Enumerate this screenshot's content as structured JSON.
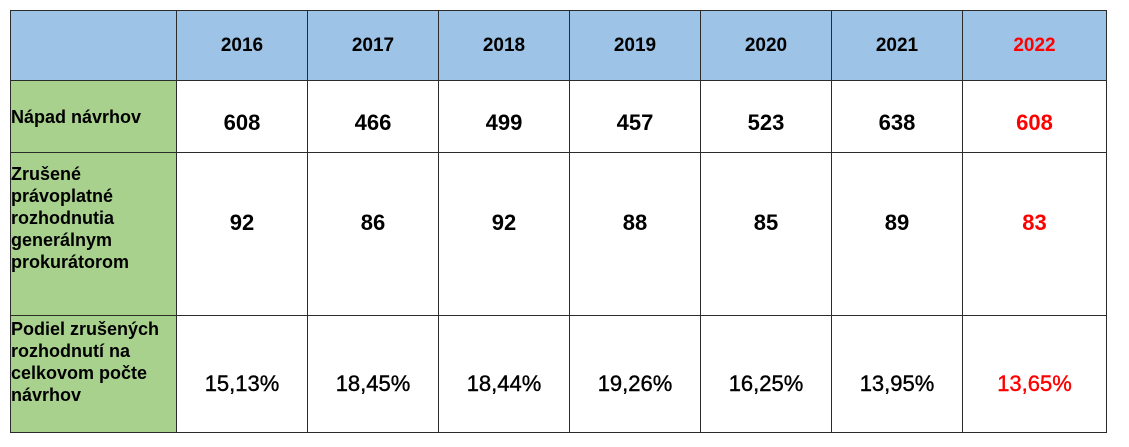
{
  "table": {
    "years": [
      "2016",
      "2017",
      "2018",
      "2019",
      "2020",
      "2021",
      "2022"
    ],
    "rows": [
      {
        "label": "Nápad návrhov",
        "values": [
          "608",
          "466",
          "499",
          "457",
          "523",
          "638",
          "608"
        ]
      },
      {
        "label": "Zrušené právoplatné rozhodnutia generálnym prokurátorom",
        "values": [
          "92",
          "86",
          "92",
          "88",
          "85",
          "89",
          "83"
        ]
      },
      {
        "label": "Podiel zrušených rozhodnutí na celkovom počte návrhov",
        "values": [
          "15,13%",
          "18,45%",
          "18,44%",
          "19,26%",
          "16,25%",
          "13,95%",
          "13,65%"
        ]
      }
    ]
  },
  "colors": {
    "header_bg": "#9dc3e6",
    "label_bg": "#a9d18e",
    "highlight_text": "#ff0000",
    "border": "#2b2b2b"
  }
}
